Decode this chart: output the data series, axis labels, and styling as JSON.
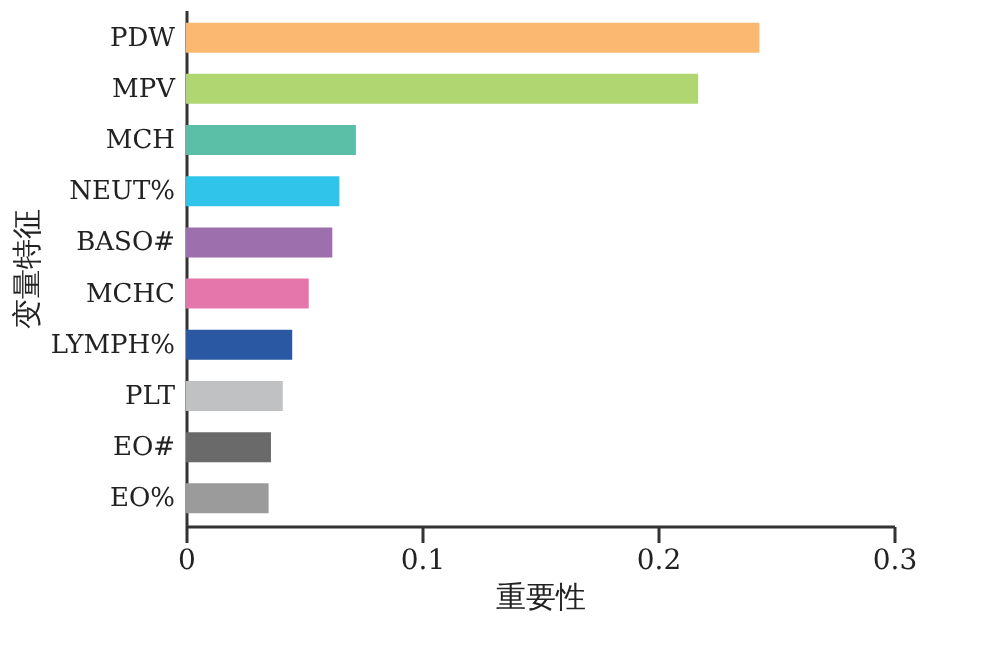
{
  "chart_data": {
    "type": "bar",
    "orientation": "horizontal",
    "xlabel": "重要性",
    "ylabel": "变量特征",
    "categories": [
      "PDW",
      "MPV",
      "MCH",
      "NEUT%",
      "BASO#",
      "MCHC",
      "LYMPH%",
      "PLT",
      "EO#",
      "EO%"
    ],
    "values": [
      0.243,
      0.217,
      0.072,
      0.065,
      0.062,
      0.052,
      0.045,
      0.041,
      0.036,
      0.035
    ],
    "colors": [
      "#fbb870",
      "#b0d672",
      "#5bbfa8",
      "#31c4ea",
      "#9d70ad",
      "#e476ab",
      "#2a58a3",
      "#c0c1c3",
      "#6a6a6a",
      "#9b9b9b"
    ],
    "xlim": [
      0,
      0.3
    ],
    "xticks": [
      0,
      0.1,
      0.2,
      0.3
    ],
    "grid": false
  }
}
